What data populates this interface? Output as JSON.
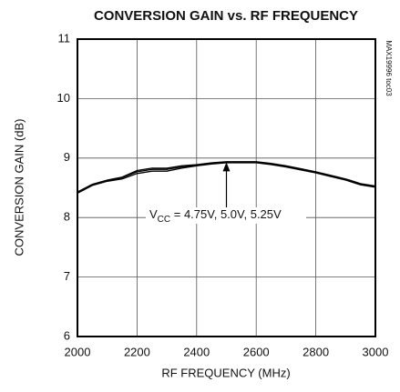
{
  "chart_data": {
    "type": "line",
    "title": "CONVERSION GAIN vs. RF FREQUENCY",
    "xlabel": "RF FREQUENCY (MHz)",
    "ylabel": "CONVERSION GAIN (dB)",
    "side_note": "MAX19996 toc03",
    "annotation": {
      "prefix": "V",
      "subscript": "CC",
      "text": " = 4.75V, 5.0V, 5.25V"
    },
    "x": [
      2000,
      2050,
      2100,
      2150,
      2200,
      2250,
      2300,
      2350,
      2400,
      2450,
      2500,
      2550,
      2600,
      2650,
      2700,
      2750,
      2800,
      2850,
      2900,
      2950,
      3000
    ],
    "series": [
      {
        "color": "#000000",
        "values": [
          8.41,
          8.54,
          8.61,
          8.65,
          8.74,
          8.78,
          8.78,
          8.83,
          8.87,
          8.9,
          8.92,
          8.92,
          8.92,
          8.89,
          8.85,
          8.8,
          8.75,
          8.69,
          8.63,
          8.55,
          8.51
        ]
      },
      {
        "color": "#000000",
        "values": [
          8.42,
          8.55,
          8.62,
          8.67,
          8.77,
          8.81,
          8.81,
          8.85,
          8.88,
          8.91,
          8.93,
          8.93,
          8.93,
          8.9,
          8.86,
          8.81,
          8.76,
          8.7,
          8.64,
          8.56,
          8.52
        ]
      },
      {
        "color": "#000000",
        "values": [
          8.43,
          8.56,
          8.63,
          8.68,
          8.79,
          8.83,
          8.83,
          8.87,
          8.89,
          8.92,
          8.94,
          8.94,
          8.94,
          8.91,
          8.87,
          8.82,
          8.77,
          8.71,
          8.65,
          8.57,
          8.53
        ]
      }
    ],
    "xlim": [
      2000,
      3000
    ],
    "xticks": [
      2000,
      2200,
      2400,
      2600,
      2800,
      3000
    ],
    "ylim": [
      6,
      11
    ],
    "yticks": [
      6,
      7,
      8,
      9,
      10,
      11
    ],
    "grid": true
  }
}
